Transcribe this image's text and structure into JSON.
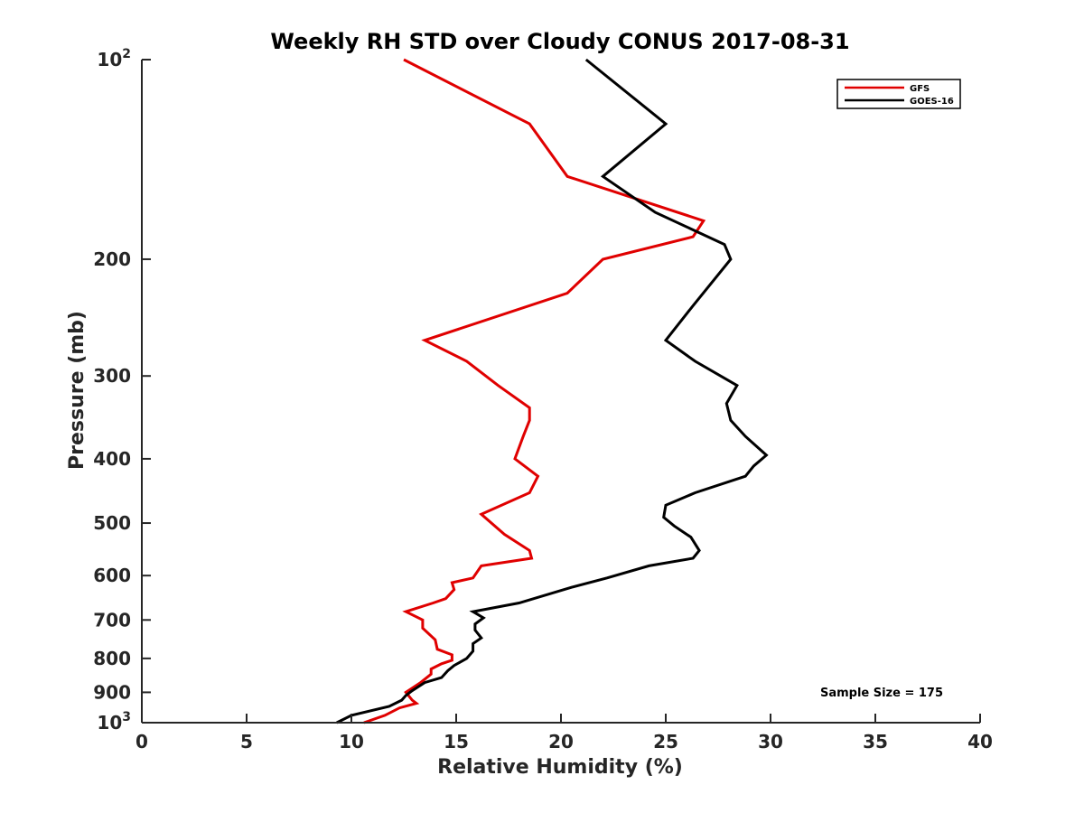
{
  "chart_data": {
    "type": "line",
    "title": "Weekly RH STD over Cloudy CONUS 2017-08-31",
    "xlabel": "Relative Humidity (%)",
    "ylabel": "Pressure (mb)",
    "xlim": [
      0,
      40
    ],
    "ylim": [
      100,
      1000
    ],
    "y_scale": "log",
    "y_reversed": true,
    "grid": false,
    "legend_position": "top-right",
    "x_ticks": [
      0,
      5,
      10,
      15,
      20,
      25,
      30,
      35,
      40
    ],
    "x_tick_labels": [
      "0",
      "5",
      "10",
      "15",
      "20",
      "25",
      "30",
      "35",
      "40"
    ],
    "y_ticks": [
      200,
      300,
      400,
      500,
      600,
      700,
      800,
      900
    ],
    "y_tick_labels": [
      "200",
      "300",
      "400",
      "500",
      "600",
      "700",
      "800",
      "900"
    ],
    "y_ticks_power": [
      {
        "value": 100,
        "base": "10",
        "exp": "2"
      },
      {
        "value": 1000,
        "base": "10",
        "exp": "3"
      }
    ],
    "annotation": "Sample Size = 175",
    "series": [
      {
        "name": "GFS",
        "color": "#e00000",
        "points": [
          [
            12.5,
            100
          ],
          [
            18.5,
            125
          ],
          [
            20.3,
            150
          ],
          [
            26.8,
            175
          ],
          [
            26.3,
            185
          ],
          [
            22.0,
            200
          ],
          [
            20.3,
            225
          ],
          [
            13.5,
            265
          ],
          [
            15.5,
            285
          ],
          [
            17.0,
            310
          ],
          [
            18.5,
            335
          ],
          [
            18.5,
            350
          ],
          [
            18.2,
            370
          ],
          [
            17.8,
            400
          ],
          [
            18.9,
            425
          ],
          [
            18.5,
            450
          ],
          [
            16.2,
            485
          ],
          [
            17.3,
            520
          ],
          [
            18.5,
            550
          ],
          [
            18.6,
            565
          ],
          [
            16.2,
            580
          ],
          [
            15.8,
            605
          ],
          [
            14.8,
            615
          ],
          [
            14.9,
            630
          ],
          [
            14.5,
            650
          ],
          [
            13.9,
            660
          ],
          [
            12.6,
            680
          ],
          [
            13.4,
            700
          ],
          [
            13.4,
            720
          ],
          [
            14.0,
            750
          ],
          [
            14.1,
            775
          ],
          [
            14.8,
            790
          ],
          [
            14.8,
            805
          ],
          [
            14.3,
            815
          ],
          [
            13.8,
            830
          ],
          [
            13.8,
            845
          ],
          [
            13.3,
            870
          ],
          [
            12.6,
            900
          ],
          [
            12.9,
            925
          ],
          [
            13.1,
            935
          ],
          [
            12.3,
            950
          ],
          [
            11.6,
            975
          ],
          [
            10.6,
            1000
          ]
        ]
      },
      {
        "name": "GOES-16",
        "color": "#000000",
        "points": [
          [
            21.2,
            100
          ],
          [
            25.0,
            125
          ],
          [
            22.0,
            150
          ],
          [
            24.5,
            170
          ],
          [
            27.8,
            190
          ],
          [
            28.1,
            200
          ],
          [
            26.3,
            235
          ],
          [
            25.0,
            265
          ],
          [
            26.4,
            285
          ],
          [
            28.4,
            310
          ],
          [
            27.9,
            330
          ],
          [
            28.1,
            350
          ],
          [
            28.8,
            370
          ],
          [
            29.8,
            395
          ],
          [
            29.2,
            410
          ],
          [
            28.8,
            425
          ],
          [
            26.4,
            450
          ],
          [
            25.0,
            470
          ],
          [
            24.9,
            490
          ],
          [
            25.4,
            505
          ],
          [
            26.2,
            525
          ],
          [
            26.6,
            550
          ],
          [
            26.3,
            565
          ],
          [
            24.2,
            580
          ],
          [
            22.2,
            605
          ],
          [
            20.5,
            625
          ],
          [
            18.0,
            660
          ],
          [
            15.8,
            680
          ],
          [
            16.3,
            695
          ],
          [
            15.9,
            710
          ],
          [
            15.9,
            725
          ],
          [
            16.2,
            745
          ],
          [
            15.8,
            760
          ],
          [
            15.8,
            780
          ],
          [
            15.5,
            800
          ],
          [
            14.9,
            820
          ],
          [
            14.6,
            835
          ],
          [
            14.3,
            855
          ],
          [
            13.5,
            870
          ],
          [
            12.9,
            895
          ],
          [
            12.6,
            910
          ],
          [
            12.4,
            925
          ],
          [
            11.8,
            945
          ],
          [
            10.0,
            975
          ],
          [
            9.3,
            1000
          ]
        ]
      }
    ]
  }
}
